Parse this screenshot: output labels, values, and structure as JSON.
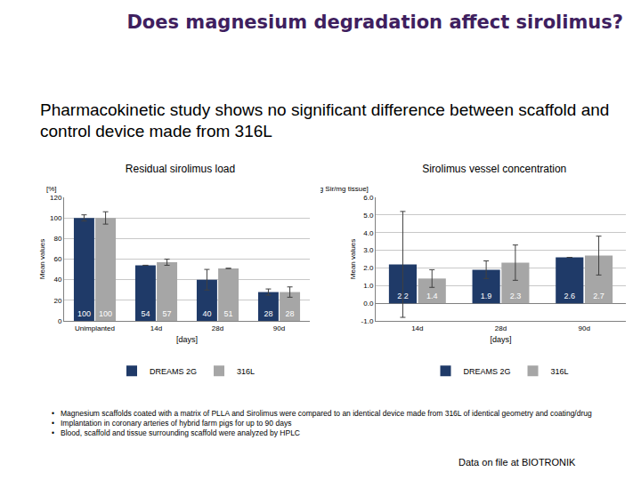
{
  "slide": {
    "title": "Does magnesium degradation affect sirolimus?",
    "subtitle": "Pharmacokinetic study shows no significant difference between scaffold and control device made from 316L",
    "bullets": [
      "Magnesium scaffolds coated with a matrix of PLLA and Sirolimus were compared to an identical device made from 316L of identical geometry and coating/drug",
      "Implantation in coronary arteries of hybrid farm pigs for up to 90 days",
      "Blood, scaffold and tissue surrounding scaffold were analyzed by HPLC"
    ],
    "footer": "Data on file at BIOTRONIK"
  },
  "chart_data": [
    {
      "type": "bar",
      "title": "Residual sirolimus load",
      "xlabel": "[days]",
      "ylabel": "Mean values",
      "yunit": "[%]",
      "categories": [
        "Unimplanted",
        "14d",
        "28d",
        "90d"
      ],
      "series": [
        {
          "name": "DREAMS 2G",
          "color": "#1f3a68",
          "values": [
            100,
            54,
            40,
            28
          ],
          "errors": [
            3,
            0,
            10,
            3
          ]
        },
        {
          "name": "316L",
          "color": "#a6a6a6",
          "values": [
            100,
            57,
            51,
            28
          ],
          "errors": [
            6,
            3,
            0,
            5
          ]
        }
      ],
      "ylim": [
        0,
        120
      ],
      "yticks": [
        0,
        20,
        40,
        60,
        80,
        100,
        120
      ],
      "grid": true,
      "legend": "bottom",
      "data_labels": true
    },
    {
      "type": "bar",
      "title": "Sirolimus vessel concentration",
      "xlabel": "[days]",
      "ylabel": "Mean values",
      "yunit": "[ng Sir/mg tissue]",
      "categories": [
        "14d",
        "28d",
        "90d"
      ],
      "series": [
        {
          "name": "DREAMS 2G",
          "color": "#1f3a68",
          "values": [
            2.2,
            1.9,
            2.6
          ],
          "errors": [
            3.0,
            0.5,
            0
          ]
        },
        {
          "name": "316L",
          "color": "#a6a6a6",
          "values": [
            1.4,
            2.3,
            2.7
          ],
          "errors": [
            0.5,
            1.0,
            1.1
          ]
        }
      ],
      "ylim": [
        -1,
        6
      ],
      "yticks": [
        {
          "value": -1,
          "label": "-1.0"
        },
        {
          "value": 0,
          "label": "0.0"
        },
        {
          "value": 1,
          "label": "1.0"
        },
        {
          "value": 2,
          "label": "2.0"
        },
        {
          "value": 3,
          "label": "3.0"
        },
        {
          "value": 4,
          "label": "4.0"
        },
        {
          "value": 5,
          "label": "5.0"
        },
        {
          "value": 6,
          "label": "6.0"
        }
      ],
      "grid": true,
      "legend": "bottom",
      "data_labels": true
    }
  ]
}
